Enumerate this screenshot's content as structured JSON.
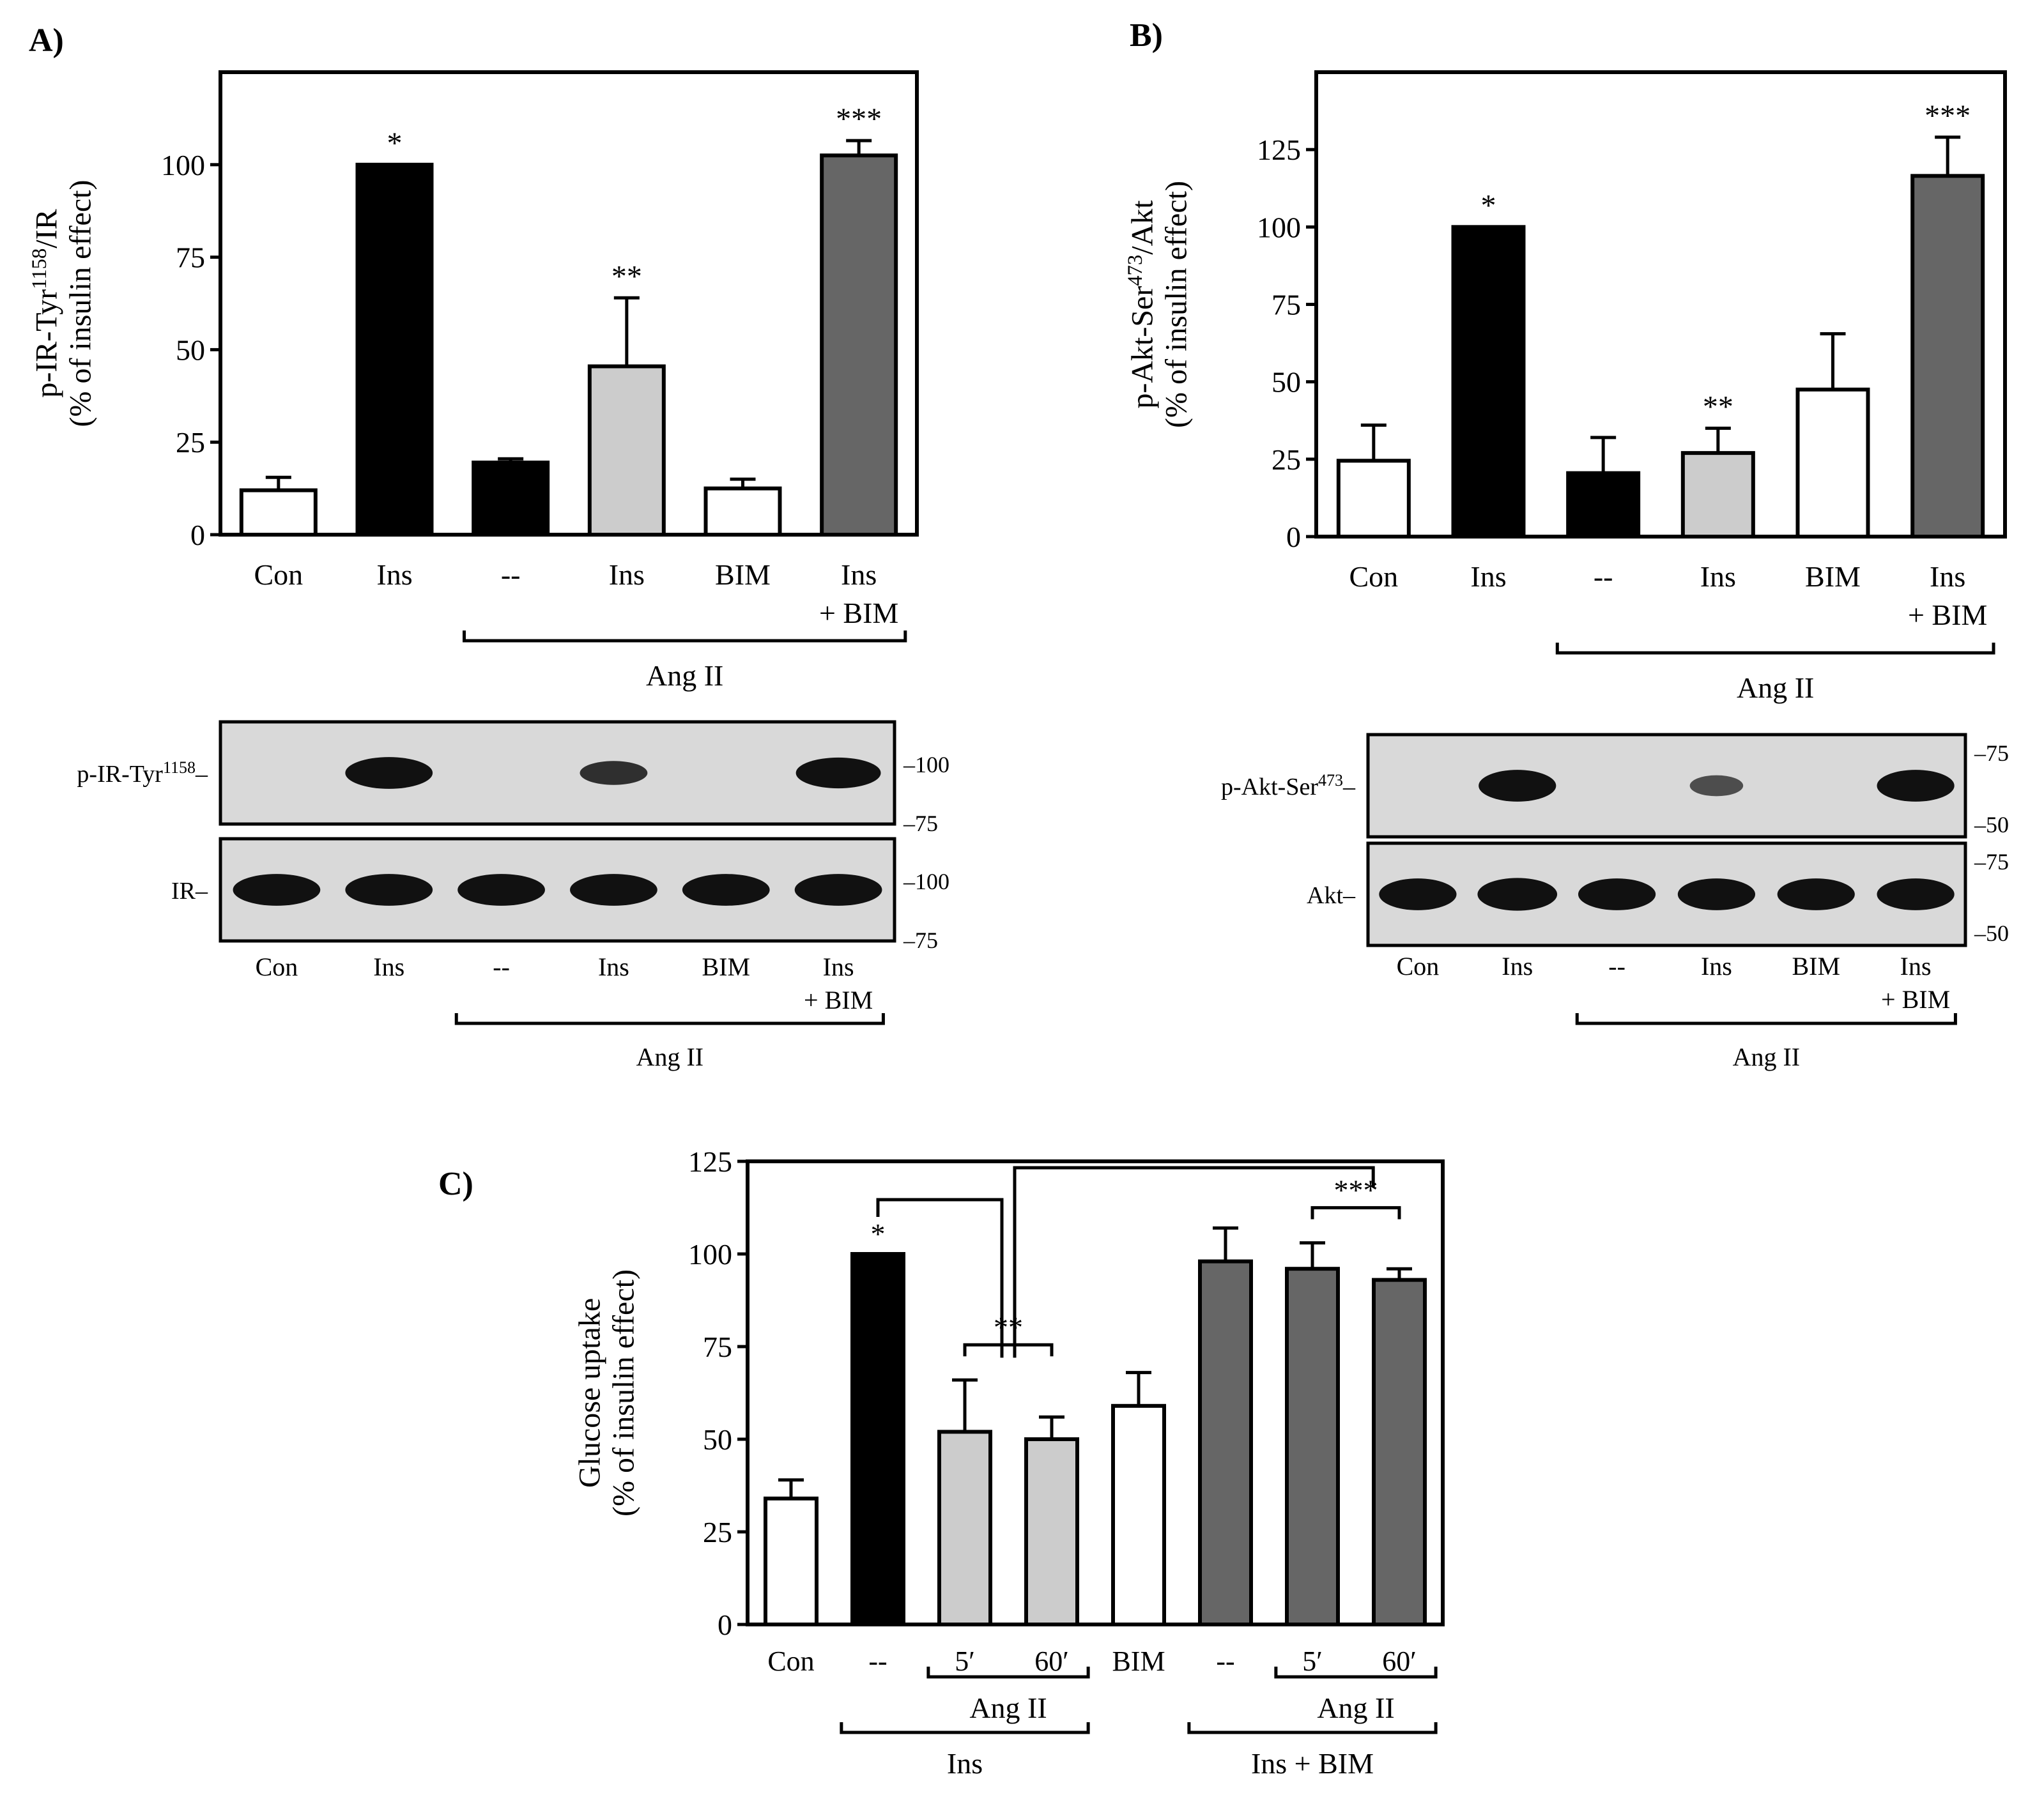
{
  "panels": {
    "A": {
      "label": "A)"
    },
    "B": {
      "label": "B)"
    },
    "C": {
      "label": "C)"
    }
  },
  "colors": {
    "white": "#ffffff",
    "black": "#000000",
    "light_gray": "#cccccc",
    "dark_gray": "#666666",
    "blot_background": "#d9d9d9",
    "band": "#111111"
  },
  "chart_data": [
    {
      "id": "A",
      "type": "bar",
      "ylabel_line1": "p-IR-Tyr",
      "ylabel_sup": "1158",
      "ylabel_suffix": "/IR",
      "ylabel_line2": "(% of insulin effect)",
      "ylim": [
        0,
        125
      ],
      "yticks": [
        "0",
        "25",
        "50",
        "75",
        "100"
      ],
      "categories": [
        {
          "line1": "Con",
          "line2": ""
        },
        {
          "line1": "Ins",
          "line2": ""
        },
        {
          "line1": "--",
          "line2": ""
        },
        {
          "line1": "Ins",
          "line2": ""
        },
        {
          "line1": "BIM",
          "line2": ""
        },
        {
          "line1": "Ins",
          "line2": "+ BIM"
        }
      ],
      "values": [
        12,
        100,
        19.5,
        45.5,
        12.5,
        102.5
      ],
      "errors": [
        3.5,
        0,
        1,
        18.5,
        2.5,
        4
      ],
      "fills": [
        "white",
        "black",
        "black",
        "light_gray",
        "white",
        "dark_gray"
      ],
      "significance": [
        "",
        "*",
        "",
        "**",
        "",
        "***"
      ],
      "groups": [
        {
          "label": "Ang II",
          "from": 2,
          "to": 5
        }
      ],
      "blot": {
        "rows": [
          {
            "label": "p-IR-Tyr",
            "sup": "1158",
            "intensity": [
              0,
              0.95,
              0,
              0.55,
              0,
              0.9
            ],
            "markers": [
              "100",
              "75"
            ]
          },
          {
            "label": "IR",
            "sup": "",
            "intensity": [
              0.95,
              0.95,
              0.95,
              0.95,
              0.95,
              0.95
            ],
            "markers": [
              "100",
              "75"
            ]
          }
        ],
        "categories": [
          {
            "line1": "Con",
            "line2": ""
          },
          {
            "line1": "Ins",
            "line2": ""
          },
          {
            "line1": "--",
            "line2": ""
          },
          {
            "line1": "Ins",
            "line2": ""
          },
          {
            "line1": "BIM",
            "line2": ""
          },
          {
            "line1": "Ins",
            "line2": "+ BIM"
          }
        ],
        "group": {
          "label": "Ang  II",
          "from": 2,
          "to": 5
        }
      }
    },
    {
      "id": "B",
      "type": "bar",
      "ylabel_line1": "p-Akt-Ser",
      "ylabel_sup": "473",
      "ylabel_suffix": "/Akt",
      "ylabel_line2": "(% of insulin effect)",
      "ylim": [
        0,
        150
      ],
      "yticks": [
        "0",
        "25",
        "50",
        "75",
        "100",
        "125"
      ],
      "categories": [
        {
          "line1": "Con",
          "line2": ""
        },
        {
          "line1": "Ins",
          "line2": ""
        },
        {
          "line1": "--",
          "line2": ""
        },
        {
          "line1": "Ins",
          "line2": ""
        },
        {
          "line1": "BIM",
          "line2": ""
        },
        {
          "line1": "Ins",
          "line2": "+ BIM"
        }
      ],
      "values": [
        24.5,
        100,
        20.5,
        27,
        47.5,
        116.5
      ],
      "errors": [
        11.5,
        0,
        11.5,
        8,
        18,
        12.5
      ],
      "fills": [
        "white",
        "black",
        "black",
        "light_gray",
        "white",
        "dark_gray"
      ],
      "significance": [
        "",
        "*",
        "",
        "**",
        "",
        "***"
      ],
      "groups": [
        {
          "label": "Ang II",
          "from": 2,
          "to": 5
        }
      ],
      "blot": {
        "rows": [
          {
            "label": "p-Akt-Ser",
            "sup": "473",
            "intensity": [
              0,
              0.95,
              0,
              0.4,
              0,
              0.95
            ],
            "markers": [
              "75",
              "50"
            ]
          },
          {
            "label": "Akt",
            "sup": "",
            "intensity": [
              0.95,
              1,
              0.95,
              0.95,
              0.95,
              0.95
            ],
            "markers": [
              "75",
              "50"
            ]
          }
        ],
        "categories": [
          {
            "line1": "Con",
            "line2": ""
          },
          {
            "line1": "Ins",
            "line2": ""
          },
          {
            "line1": "--",
            "line2": ""
          },
          {
            "line1": "Ins",
            "line2": ""
          },
          {
            "line1": "BIM",
            "line2": ""
          },
          {
            "line1": "Ins",
            "line2": "+ BIM"
          }
        ],
        "group": {
          "label": "Ang  II",
          "from": 2,
          "to": 5
        }
      }
    },
    {
      "id": "C",
      "type": "bar",
      "ylabel_line1": "Glucose uptake",
      "ylabel_line2": "(% of insulin effect)",
      "ylim": [
        0,
        125
      ],
      "yticks": [
        "0",
        "25",
        "50",
        "75",
        "100",
        "125"
      ],
      "categories": [
        "Con",
        "--",
        "5′",
        "60′",
        "BIM",
        "--",
        "5′",
        "60′"
      ],
      "values": [
        34,
        100,
        52,
        50,
        59,
        98,
        96,
        93
      ],
      "errors": [
        5,
        0,
        14,
        6,
        9,
        9,
        7,
        3
      ],
      "fills": [
        "white",
        "black",
        "light_gray",
        "light_gray",
        "white",
        "dark_gray",
        "dark_gray",
        "dark_gray"
      ],
      "significance": [
        {
          "label": "*",
          "over": 1
        },
        {
          "label": "**",
          "from": 2,
          "to": 3
        },
        {
          "label": "***",
          "from": 6,
          "to": 7
        }
      ],
      "groups": [
        {
          "label": "Ang II",
          "from": 2,
          "to": 3
        },
        {
          "label": "Ang II",
          "from": 6,
          "to": 7
        },
        {
          "label": "Ins",
          "from": 1,
          "to": 3
        },
        {
          "label": "Ins + BIM",
          "from": 5,
          "to": 7
        }
      ],
      "comparisons": [
        {
          "from": 1,
          "to": 2.5,
          "level": 125
        },
        {
          "from": 2.5,
          "to": 6.7,
          "level": 125
        }
      ]
    }
  ]
}
